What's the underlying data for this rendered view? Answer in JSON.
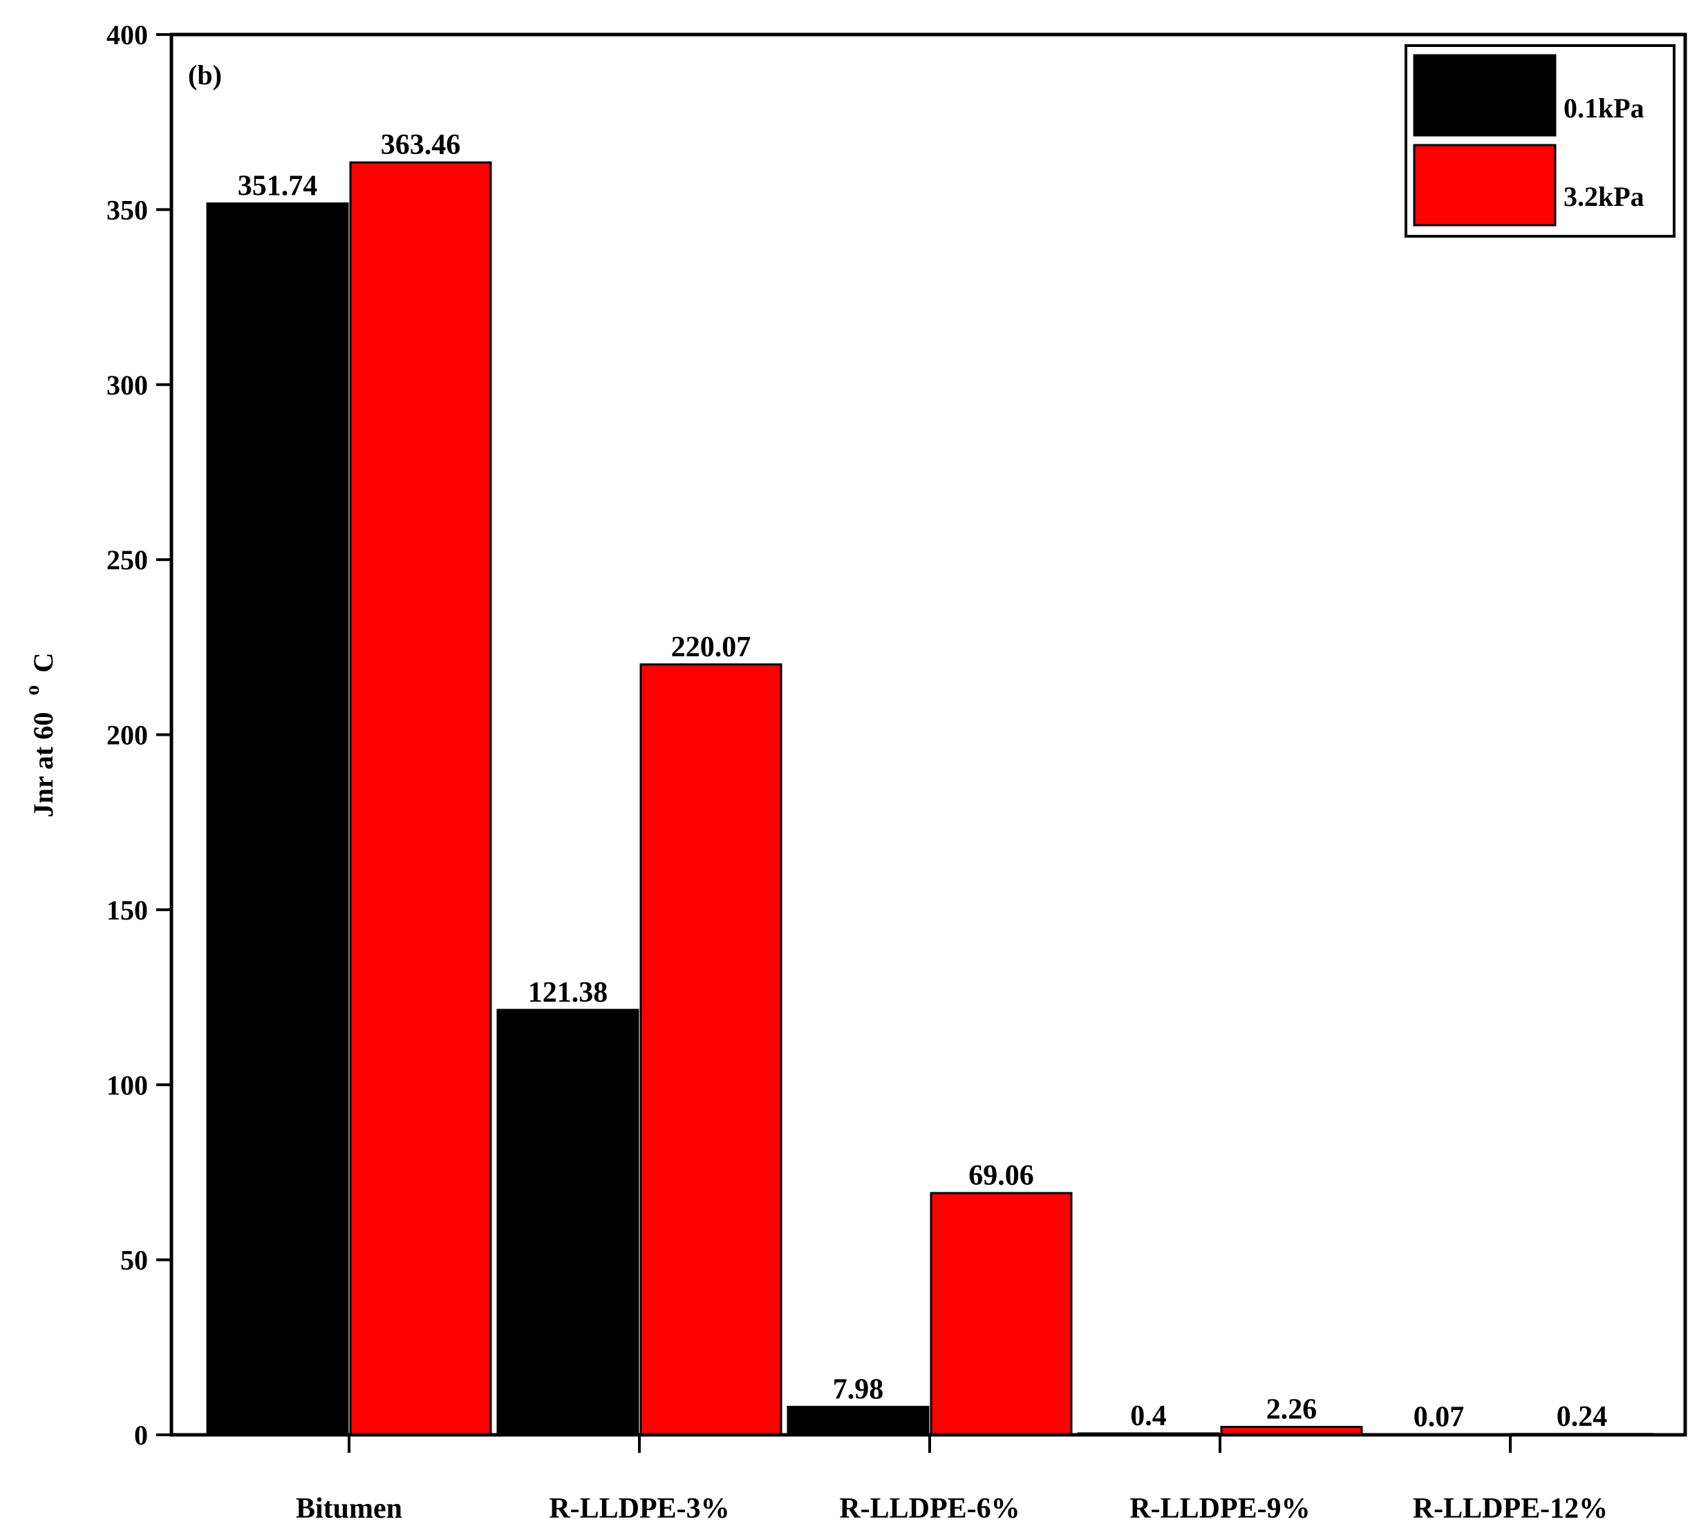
{
  "chart_data": {
    "type": "bar",
    "panel_label": "(b)",
    "title": "",
    "xlabel": "",
    "ylabel": "Jnr at 60",
    "ylabel_degree": "o",
    "ylabel_unit": "C",
    "ylim": [
      0,
      400
    ],
    "yticks": [
      "0",
      "50",
      "100",
      "150",
      "200",
      "250",
      "300",
      "350",
      "400"
    ],
    "grid": false,
    "legend_position": "top-right",
    "categories": [
      "Bitumen",
      "R-LLDPE-3%",
      "R-LLDPE-6%",
      "R-LLDPE-9%",
      "R-LLDPE-12%"
    ],
    "series": [
      {
        "name": "0.1kPa",
        "color": "#000000",
        "values": [
          351.74,
          121.38,
          7.98,
          0.4,
          0.07
        ],
        "labels": [
          "351.74",
          "121.38",
          "7.98",
          "0.4",
          "0.07"
        ]
      },
      {
        "name": "3.2kPa",
        "color": "#ff0000",
        "values": [
          363.46,
          220.07,
          69.06,
          2.26,
          0.24
        ],
        "labels": [
          "363.46",
          "220.07",
          "69.06",
          "2.26",
          "0.24"
        ]
      }
    ]
  }
}
